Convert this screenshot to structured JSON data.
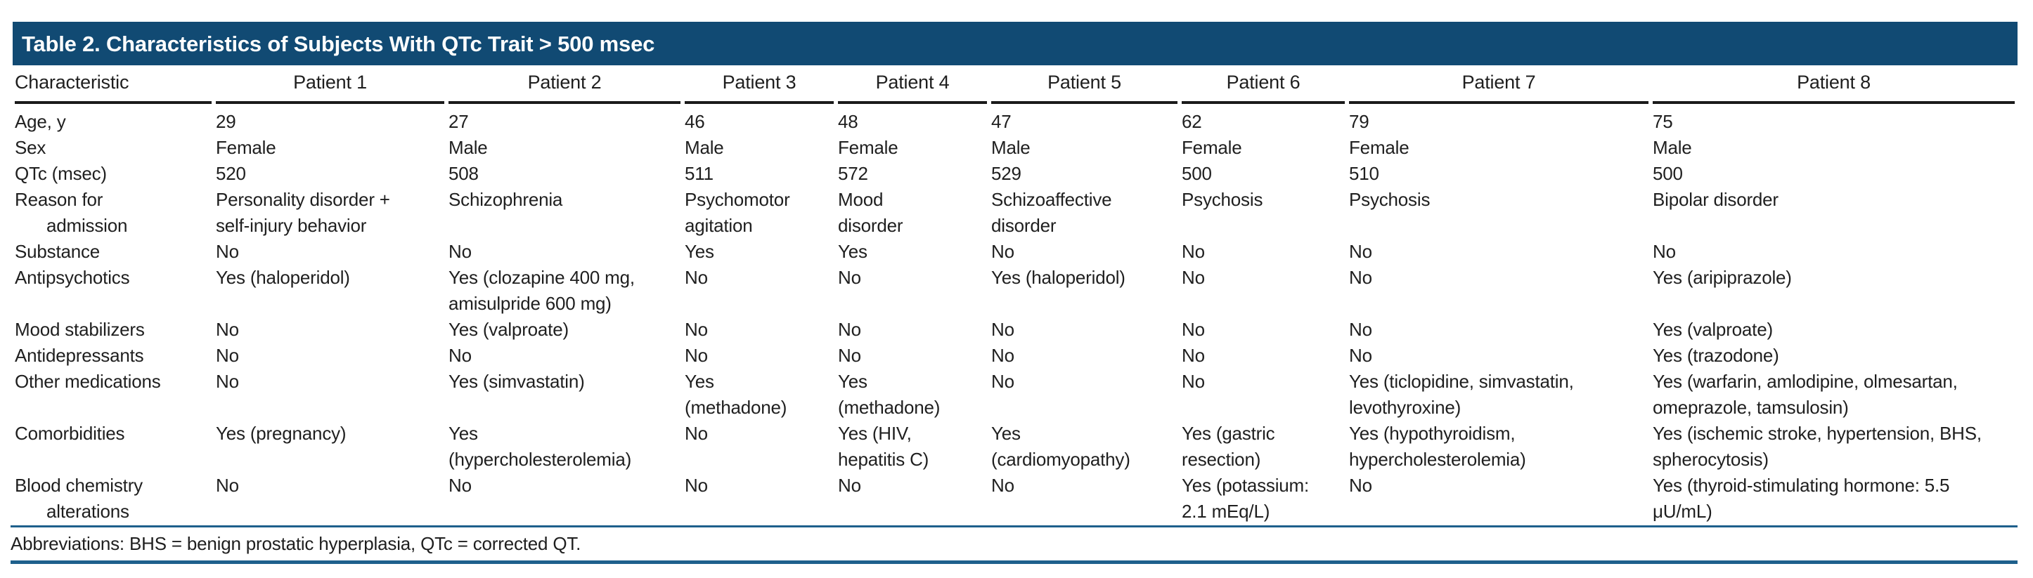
{
  "title": "Table 2. Characteristics of Subjects With QTc Trait > 500 msec",
  "colors": {
    "title_bar": "#114A73",
    "rule_blue": "#1E608C",
    "rule_black": "#1A1A1A"
  },
  "table": {
    "columns": [
      "Characteristic",
      "Patient 1",
      "Patient 2",
      "Patient 3",
      "Patient 4",
      "Patient 5",
      "Patient 6",
      "Patient 7",
      "Patient 8"
    ],
    "rows": [
      {
        "label": "Age, y",
        "values": [
          "29",
          "27",
          "46",
          "48",
          "47",
          "62",
          "79",
          "75"
        ]
      },
      {
        "label": "Sex",
        "values": [
          "Female",
          "Male",
          "Male",
          "Female",
          "Male",
          "Female",
          "Female",
          "Male"
        ]
      },
      {
        "label": "QTc (msec)",
        "values": [
          "520",
          "508",
          "511",
          "572",
          "529",
          "500",
          "510",
          "500"
        ]
      },
      {
        "label": "Reason for\nadmission",
        "values": [
          "Personality disorder +\nself-injury behavior",
          "Schizophrenia",
          "Psychomotor\nagitation",
          "Mood\ndisorder",
          "Schizoaffective\ndisorder",
          "Psychosis",
          "Psychosis",
          "Bipolar disorder"
        ]
      },
      {
        "label": "Substance",
        "values": [
          "No",
          "No",
          "Yes",
          "Yes",
          "No",
          "No",
          "No",
          "No"
        ]
      },
      {
        "label": "Antipsychotics",
        "values": [
          "Yes (haloperidol)",
          "Yes (clozapine 400 mg,\namisulpride 600 mg)",
          "No",
          "No",
          "Yes (haloperidol)",
          "No",
          "No",
          "Yes (aripiprazole)"
        ]
      },
      {
        "label": "Mood stabilizers",
        "values": [
          "No",
          "Yes (valproate)",
          "No",
          "No",
          "No",
          "No",
          "No",
          "Yes (valproate)"
        ]
      },
      {
        "label": "Antidepressants",
        "values": [
          "No",
          "No",
          "No",
          "No",
          "No",
          "No",
          "No",
          "Yes (trazodone)"
        ]
      },
      {
        "label": "Other medications",
        "values": [
          "No",
          "Yes (simvastatin)",
          "Yes\n(methadone)",
          "Yes\n(methadone)",
          "No",
          "No",
          "Yes (ticlopidine, simvastatin,\nlevothyroxine)",
          "Yes (warfarin, amlodipine, olmesartan,\nomeprazole, tamsulosin)"
        ]
      },
      {
        "label": "Comorbidities",
        "values": [
          "Yes (pregnancy)",
          "Yes\n(hypercholesterolemia)",
          "No",
          "Yes (HIV,\nhepatitis C)",
          "Yes\n(cardiomyopathy)",
          "Yes (gastric\nresection)",
          "Yes (hypothyroidism,\nhypercholesterolemia)",
          "Yes (ischemic stroke, hypertension, BHS,\nspherocytosis)"
        ]
      },
      {
        "label": "Blood chemistry\nalterations",
        "values": [
          "No",
          "No",
          "No",
          "No",
          "No",
          "Yes (potassium:\n2.1 mEq/L)",
          "No",
          "Yes (thyroid-stimulating hormone: 5.5\nμU/mL)"
        ]
      }
    ]
  },
  "footnote": "Abbreviations: BHS = benign prostatic hyperplasia, QTc = corrected QT."
}
